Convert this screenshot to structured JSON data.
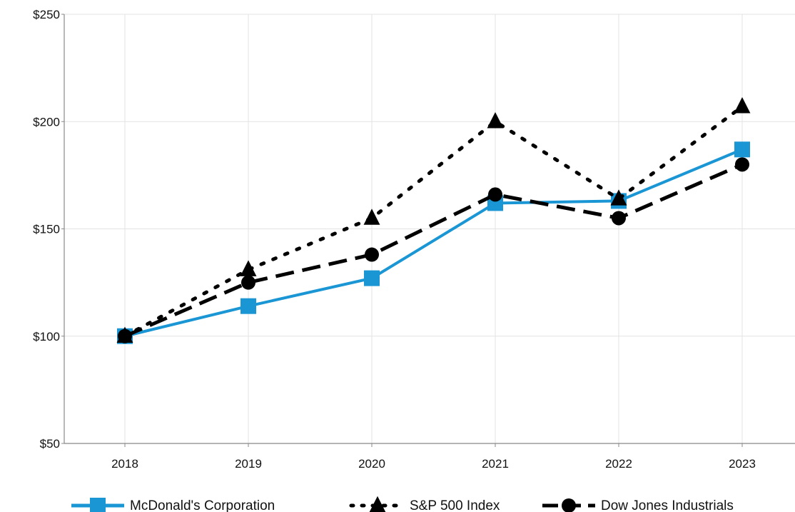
{
  "chart_data": {
    "type": "line",
    "categories": [
      "2018",
      "2019",
      "2020",
      "2021",
      "2022",
      "2023"
    ],
    "ylim": [
      50,
      250
    ],
    "yticks": [
      50,
      100,
      150,
      200,
      250
    ],
    "ytick_labels": [
      "$50",
      "$100",
      "$150",
      "$200",
      "$250"
    ],
    "grid": true,
    "legend_position": "bottom",
    "series": [
      {
        "name": "McDonald's Corporation",
        "values": [
          100,
          114,
          127,
          162,
          163,
          187
        ],
        "color": "#1a96d4",
        "line_style": "solid",
        "marker": "square"
      },
      {
        "name": "S&P 500 Index",
        "values": [
          100,
          131,
          155,
          200,
          164,
          207
        ],
        "color": "#000000",
        "line_style": "dotted",
        "marker": "triangle"
      },
      {
        "name": "Dow Jones Industrials",
        "values": [
          100,
          125,
          138,
          166,
          155,
          180
        ],
        "color": "#000000",
        "line_style": "dashed",
        "marker": "circle"
      }
    ]
  }
}
